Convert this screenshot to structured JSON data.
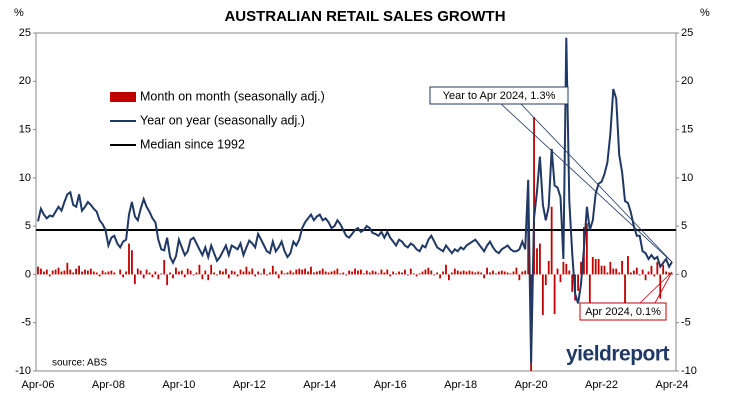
{
  "chart_data": {
    "type": "bar-line",
    "title": "AUSTRALIAN RETAIL SALES GROWTH",
    "y_label": "%",
    "y2_label": "%",
    "categories": [
      "Apr-06",
      null,
      null,
      null,
      null,
      null,
      null,
      null,
      null,
      null,
      null,
      null,
      null,
      null,
      null,
      null,
      null,
      null,
      null,
      null,
      null,
      null,
      null,
      null,
      "Apr-08",
      null,
      null,
      null,
      null,
      null,
      null,
      null,
      null,
      null,
      null,
      null,
      null,
      null,
      null,
      null,
      null,
      null,
      null,
      null,
      null,
      null,
      null,
      null,
      "Apr-10",
      null,
      null,
      null,
      null,
      null,
      null,
      null,
      null,
      null,
      null,
      null,
      null,
      null,
      null,
      null,
      null,
      null,
      null,
      null,
      null,
      null,
      null,
      null,
      "Apr-12",
      null,
      null,
      null,
      null,
      null,
      null,
      null,
      null,
      null,
      null,
      null,
      null,
      null,
      null,
      null,
      null,
      null,
      null,
      null,
      null,
      null,
      null,
      null,
      "Apr-14",
      null,
      null,
      null,
      null,
      null,
      null,
      null,
      null,
      null,
      null,
      null,
      null,
      null,
      null,
      null,
      null,
      null,
      null,
      null,
      null,
      null,
      null,
      null,
      "Apr-16",
      null,
      null,
      null,
      null,
      null,
      null,
      null,
      null,
      null,
      null,
      null,
      null,
      null,
      null,
      null,
      null,
      null,
      null,
      null,
      null,
      null,
      null,
      null,
      "Apr-18",
      null,
      null,
      null,
      null,
      null,
      null,
      null,
      null,
      null,
      null,
      null,
      null,
      null,
      null,
      null,
      null,
      null,
      null,
      null,
      null,
      null,
      null,
      null,
      "Apr-20",
      null,
      null,
      null,
      null,
      null,
      null,
      null,
      null,
      null,
      null,
      null,
      null,
      null,
      null,
      null,
      null,
      null,
      null,
      null,
      null,
      null,
      null,
      null,
      "Apr-22",
      null,
      null,
      null,
      null,
      null,
      null,
      null,
      null,
      null,
      null,
      null,
      null,
      null,
      null,
      null,
      null,
      null,
      null,
      null,
      null,
      null,
      null,
      null,
      "Apr-24"
    ],
    "series": [
      {
        "name": "Month on month (seasonally adj.)",
        "type": "bar",
        "color": "#c00000",
        "values": [
          0.8,
          0.6,
          0.3,
          0.5,
          -0.2,
          0.4,
          0.5,
          0.7,
          0.3,
          0.4,
          1.2,
          0.5,
          0.2,
          0.6,
          0.9,
          0.3,
          0.5,
          0.4,
          0.6,
          0.3,
          0.2,
          -0.2,
          0.4,
          0.2,
          0.3,
          0.4,
          0.2,
          0.0,
          0.5,
          -0.3,
          0.3,
          3.2,
          2.5,
          -1.0,
          0.6,
          0.4,
          -0.4,
          0.5,
          0.2,
          -0.3,
          0.3,
          -0.5,
          0.1,
          1.5,
          -1.1,
          0.2,
          -0.4,
          0.7,
          0.3,
          0.4,
          -0.3,
          0.6,
          0.4,
          -0.1,
          0.2,
          1.0,
          -0.5,
          0.4,
          -0.6,
          1.0,
          0.2,
          -0.1,
          0.4,
          0.3,
          0.6,
          -0.4,
          0.4,
          0.3,
          -0.2,
          0.5,
          0.3,
          0.8,
          0.3,
          0.6,
          -0.2,
          0.3,
          0.1,
          0.6,
          -0.1,
          0.2,
          0.9,
          0.3,
          -0.4,
          0.4,
          0.1,
          0.2,
          0.4,
          0.2,
          0.5,
          0.6,
          0.5,
          0.6,
          0.3,
          0.8,
          0.2,
          0.3,
          0.4,
          0.6,
          0.3,
          0.2,
          0.3,
          0.4,
          0.6,
          0.1,
          0.2,
          -0.1,
          0.4,
          0.3,
          0.6,
          0.4,
          0.5,
          0.1,
          0.4,
          0.2,
          0.4,
          0.3,
          0.1,
          0.5,
          0.2,
          0.5,
          -0.2,
          0.3,
          0.1,
          0.3,
          0.2,
          0.5,
          -0.1,
          0.6,
          0.1,
          -0.2,
          0.1,
          0.3,
          0.5,
          0.7,
          0.4,
          -0.1,
          0.2,
          -0.4,
          0.3,
          1.0,
          -0.6,
          0.2,
          0.6,
          0.4,
          0.3,
          0.4,
          0.3,
          0.4,
          0.3,
          0.2,
          0.3,
          0.2,
          -0.4,
          0.7,
          0.2,
          0.4,
          0.1,
          0.3,
          0.4,
          0.3,
          0.2,
          0.1,
          0.3,
          0.7,
          -0.6,
          0.3,
          0.4,
          8.2,
          -10,
          16.3,
          2.7,
          3.2,
          -4.2,
          -1.1,
          1.4,
          7.0,
          -4.1,
          0.6,
          -0.8,
          1.3,
          1.1,
          0.4,
          -1.8,
          -2.7,
          -1.7,
          1.3,
          4.9,
          5.3,
          -4.4,
          1.8,
          1.6,
          1.6,
          0.9,
          0.9,
          0.2,
          1.3,
          0.6,
          0.6,
          0.2,
          1.4,
          -4.0,
          1.9,
          0.2,
          0.4,
          0.7,
          -0.1,
          0.5,
          -0.6,
          0.3,
          0.9,
          -0.2,
          1.3,
          -2.5,
          1.0,
          0.3,
          0.2,
          0.1
        ]
      },
      {
        "name": "Year on year (seasonally adj.)",
        "type": "line",
        "color": "#1f3864",
        "values": [
          5.5,
          6.8,
          6.2,
          5.8,
          6.1,
          6.0,
          6.5,
          7.0,
          6.6,
          7.5,
          8.3,
          8.5,
          7.2,
          7.0,
          8.3,
          6.6,
          7.0,
          7.5,
          7.2,
          6.8,
          6.5,
          5.6,
          5.2,
          4.6,
          3.0,
          3.8,
          4.0,
          3.2,
          2.8,
          3.4,
          3.6,
          6.2,
          7.5,
          6.0,
          5.6,
          6.8,
          7.8,
          7.0,
          6.5,
          5.8,
          5.4,
          3.6,
          2.6,
          2.5,
          3.8,
          1.8,
          1.2,
          1.9,
          3.6,
          2.8,
          2.0,
          2.4,
          3.6,
          3.8,
          3.2,
          2.6,
          2.0,
          2.8,
          1.8,
          3.0,
          2.2,
          1.4,
          1.8,
          2.4,
          3.0,
          2.0,
          3.0,
          2.8,
          2.6,
          3.2,
          2.0,
          2.8,
          3.5,
          3.2,
          2.8,
          4.2,
          3.6,
          3.0,
          2.4,
          2.2,
          3.4,
          2.4,
          2.8,
          3.4,
          2.4,
          1.8,
          2.2,
          3.4,
          3.0,
          3.6,
          4.8,
          5.4,
          5.8,
          6.2,
          5.6,
          6.0,
          6.2,
          5.6,
          5.8,
          5.4,
          4.8,
          5.0,
          5.6,
          5.2,
          4.6,
          4.0,
          3.8,
          4.2,
          4.6,
          4.8,
          4.4,
          4.6,
          5.0,
          4.8,
          4.3,
          4.2,
          4.0,
          4.4,
          3.8,
          4.4,
          3.8,
          3.4,
          3.0,
          3.6,
          3.4,
          3.0,
          2.8,
          3.2,
          3.0,
          2.6,
          2.4,
          3.0,
          2.8,
          3.6,
          4.0,
          3.4,
          2.8,
          2.6,
          2.4,
          3.0,
          2.6,
          2.2,
          2.6,
          2.4,
          2.8,
          2.6,
          3.0,
          3.2,
          3.4,
          3.6,
          3.2,
          2.8,
          2.4,
          3.0,
          3.4,
          2.8,
          2.4,
          2.2,
          2.6,
          2.8,
          3.0,
          2.6,
          2.4,
          2.4,
          2.6,
          3.4,
          2.6,
          9.8,
          -9.2,
          5.8,
          8.6,
          12.2,
          7.2,
          5.6,
          7.0,
          13.0,
          9.2,
          9.0,
          8.0,
          1.6,
          24.5,
          7.6,
          2.2,
          -2.0,
          -3.0,
          -1.0,
          2.6,
          7.0,
          4.6,
          5.6,
          8.4,
          9.4,
          9.6,
          10.4,
          11.6,
          14.6,
          19.2,
          18.2,
          12.4,
          10.6,
          7.6,
          7.4,
          6.4,
          5.0,
          4.0,
          4.0,
          2.4,
          2.2,
          1.6,
          2.0,
          1.6,
          1.8,
          0.8,
          1.2,
          1.6,
          0.8,
          1.3
        ]
      }
    ],
    "median": {
      "name": "Median since 1992",
      "color": "#000000",
      "value": 4.6
    },
    "ylim": [
      -10,
      25
    ],
    "yticks": [
      -10,
      -5,
      0,
      5,
      10,
      15,
      20,
      25
    ],
    "y2lim": [
      -10,
      25
    ],
    "y2ticks": [
      -10,
      -5,
      0,
      5,
      10,
      15,
      20,
      25
    ],
    "legend": "upper left",
    "annotations": [
      "Year to Apr 2024, 1.3%",
      "Apr 2024, 0.1%"
    ],
    "source": "source: ABS",
    "logo": "yieldreport"
  }
}
